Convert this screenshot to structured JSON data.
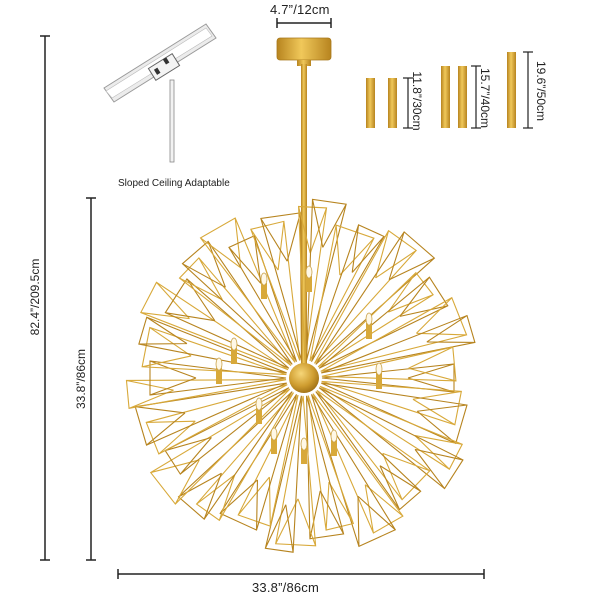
{
  "dimensions": {
    "canopy_width": "4.7”/12cm",
    "total_height": "82.4”/209.5cm",
    "body_height": "33.8”/86cm",
    "body_width": "33.8”/86cm"
  },
  "sloped_ceiling": {
    "caption": "Sloped Ceiling Adaptable"
  },
  "rods": [
    {
      "label": "11.8”/30cm"
    },
    {
      "label": "15.7”/40cm"
    },
    {
      "label": "19.6”/50cm"
    }
  ],
  "colors": {
    "brass": "#d8a93a",
    "brass_dark": "#b7841f",
    "line": "#222222"
  }
}
